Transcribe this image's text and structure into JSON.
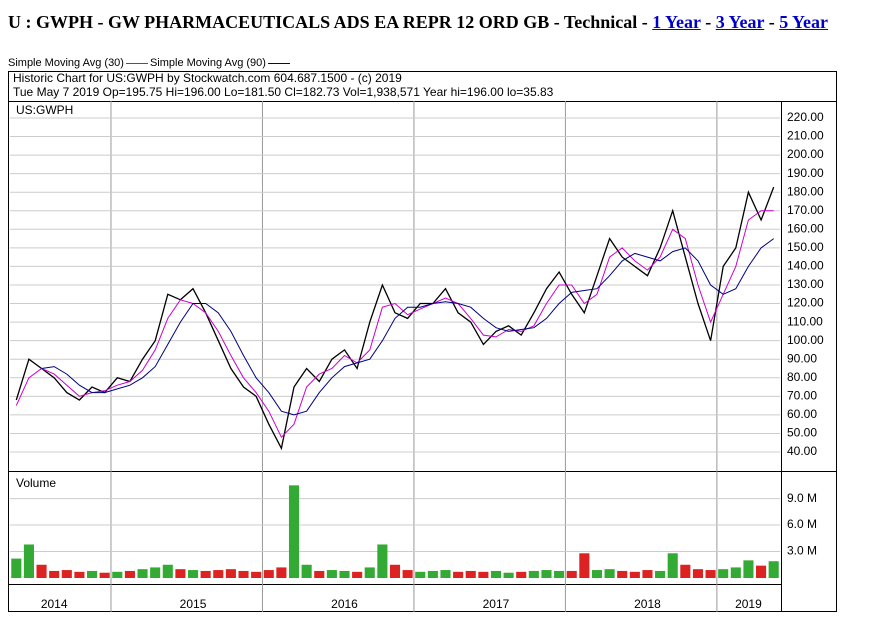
{
  "page": {
    "title": "U : GWPH - GW PHARMACEUTICALS ADS EA REPR 12 ORD GB - Technical",
    "separator": "-",
    "links": [
      "1 Year",
      "3 Year",
      "5 Year"
    ]
  },
  "chart_data": [
    {
      "type": "line",
      "title": "US:GWPH",
      "subtitle": "Historic Chart for US:GWPH by Stockwatch.com 604.687.1500 - (c) 2019",
      "annotation": "Tue May  7 2019  Op=195.75  Hi=196.00  Lo=181.50  Cl=182.73  Vol=1,938,571  Year hi=196.00  lo=35.83",
      "categories": [
        null,
        null,
        null,
        "2014",
        null,
        null,
        null,
        null,
        null,
        null,
        null,
        null,
        null,
        null,
        "2015",
        null,
        null,
        null,
        null,
        null,
        null,
        null,
        null,
        null,
        null,
        null,
        "2016",
        null,
        null,
        null,
        null,
        null,
        null,
        null,
        null,
        null,
        null,
        null,
        "2017",
        null,
        null,
        null,
        null,
        null,
        null,
        null,
        null,
        null,
        null,
        null,
        "2018",
        null,
        null,
        null,
        null,
        null,
        null,
        null,
        "2019",
        null,
        null
      ],
      "series": [
        {
          "color": "#000000",
          "values": [
            68,
            90,
            85,
            80,
            72,
            68,
            75,
            72,
            80,
            78,
            90,
            100,
            125,
            122,
            128,
            115,
            100,
            85,
            75,
            70,
            55,
            42,
            75,
            85,
            78,
            90,
            95,
            85,
            110,
            130,
            115,
            112,
            120,
            120,
            128,
            115,
            110,
            98,
            105,
            108,
            103,
            115,
            128,
            137,
            125,
            115,
            135,
            155,
            145,
            140,
            135,
            150,
            170,
            145,
            120,
            100,
            140,
            150,
            180,
            165,
            182.73
          ]
        },
        {
          "name": "Simple Moving Avg (30)",
          "color": "#cc00cc",
          "values": [
            65,
            80,
            85,
            82,
            76,
            70,
            72,
            73,
            76,
            78,
            84,
            95,
            112,
            122,
            120,
            115,
            105,
            92,
            80,
            72,
            62,
            48,
            55,
            75,
            82,
            85,
            92,
            88,
            95,
            118,
            120,
            114,
            117,
            120,
            123,
            120,
            112,
            103,
            102,
            106,
            105,
            108,
            120,
            130,
            130,
            120,
            125,
            145,
            150,
            143,
            138,
            145,
            160,
            155,
            130,
            110,
            125,
            140,
            165,
            170,
            170
          ]
        },
        {
          "name": "Simple Moving Avg (90)",
          "color": "#000080",
          "values": [
            null,
            null,
            85,
            86,
            82,
            76,
            72,
            72,
            74,
            76,
            80,
            86,
            98,
            110,
            120,
            120,
            115,
            105,
            92,
            80,
            72,
            62,
            60,
            62,
            72,
            80,
            86,
            88,
            90,
            100,
            112,
            118,
            118,
            120,
            121,
            120,
            118,
            112,
            107,
            105,
            106,
            107,
            112,
            120,
            126,
            127,
            128,
            135,
            143,
            147,
            145,
            143,
            148,
            150,
            143,
            130,
            125,
            128,
            140,
            150,
            155
          ]
        }
      ],
      "ylim": [
        30.3,
        228.6
      ],
      "yticks": [
        {
          "value": 40,
          "label": "40.00"
        },
        {
          "value": 50,
          "label": "50.00"
        },
        {
          "value": 60,
          "label": "60.00"
        },
        {
          "value": 70,
          "label": "70.00"
        },
        {
          "value": 80,
          "label": "80.00"
        },
        {
          "value": 90,
          "label": "90.00"
        },
        {
          "value": 100,
          "label": "100.00"
        },
        {
          "value": 110,
          "label": "110.00"
        },
        {
          "value": 120,
          "label": "120.00"
        },
        {
          "value": 130,
          "label": "130.00"
        },
        {
          "value": 140,
          "label": "140.00"
        },
        {
          "value": 150,
          "label": "150.00"
        },
        {
          "value": 160,
          "label": "160.00"
        },
        {
          "value": 170,
          "label": "170.00"
        },
        {
          "value": 180,
          "label": "180.00"
        },
        {
          "value": 190,
          "label": "190.00"
        },
        {
          "value": 200,
          "label": "200.00"
        },
        {
          "value": 210,
          "label": "210.00"
        },
        {
          "value": 220,
          "label": "220.00"
        }
      ],
      "grid": true
    },
    {
      "type": "bar",
      "title": "Volume",
      "up_color": "#33aa33",
      "down_color": "#dd2222",
      "values": [
        2.2,
        3.8,
        1.5,
        0.8,
        0.9,
        0.7,
        0.8,
        0.6,
        0.7,
        0.8,
        1.0,
        1.2,
        1.5,
        1.0,
        0.9,
        0.8,
        0.9,
        1.0,
        0.8,
        0.7,
        0.9,
        1.2,
        10.5,
        1.5,
        0.8,
        0.9,
        0.8,
        0.7,
        1.2,
        3.8,
        1.5,
        0.9,
        0.7,
        0.8,
        0.9,
        0.7,
        0.8,
        0.7,
        0.8,
        0.6,
        0.7,
        0.8,
        0.9,
        0.8,
        0.8,
        2.8,
        0.9,
        1.0,
        0.8,
        0.7,
        0.9,
        0.8,
        2.8,
        1.5,
        1.0,
        0.9,
        1.0,
        1.2,
        2.0,
        1.4,
        1.9
      ],
      "ylim": [
        0,
        11.9
      ],
      "yticks": [
        {
          "value": 3,
          "label": "3.0 M"
        },
        {
          "value": 6,
          "label": "6.0 M"
        },
        {
          "value": 9,
          "label": "9.0 M"
        }
      ],
      "grid": true
    }
  ]
}
